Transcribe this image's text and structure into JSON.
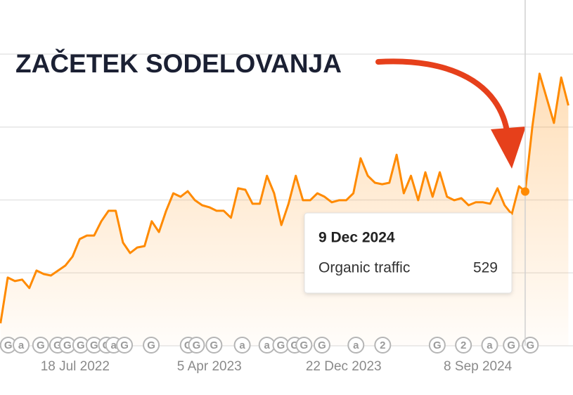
{
  "chart_data": {
    "type": "line",
    "annotation": "ZAČETEK SODELOVANJA",
    "x": [
      "2022-02-23",
      "2022-03-09",
      "2022-03-23",
      "2022-04-06",
      "2022-04-20",
      "2022-05-04",
      "2022-05-18",
      "2022-06-01",
      "2022-06-15",
      "2022-06-29",
      "2022-07-13",
      "2022-07-27",
      "2022-08-10",
      "2022-08-24",
      "2022-09-07",
      "2022-09-21",
      "2022-10-05",
      "2022-10-19",
      "2022-11-02",
      "2022-11-16",
      "2022-11-30",
      "2022-12-14",
      "2022-12-28",
      "2023-01-11",
      "2023-01-25",
      "2023-02-08",
      "2023-02-22",
      "2023-03-08",
      "2023-03-22",
      "2023-04-05",
      "2023-04-19",
      "2023-05-03",
      "2023-05-17",
      "2023-05-31",
      "2023-06-14",
      "2023-06-28",
      "2023-07-12",
      "2023-07-26",
      "2023-08-09",
      "2023-08-23",
      "2023-09-06",
      "2023-09-20",
      "2023-10-04",
      "2023-10-18",
      "2023-11-01",
      "2023-11-15",
      "2023-11-29",
      "2023-12-13",
      "2023-12-27",
      "2024-01-10",
      "2024-01-24",
      "2024-02-07",
      "2024-02-21",
      "2024-03-06",
      "2024-03-20",
      "2024-04-03",
      "2024-04-17",
      "2024-05-01",
      "2024-05-15",
      "2024-05-29",
      "2024-06-12",
      "2024-06-26",
      "2024-07-10",
      "2024-07-24",
      "2024-08-07",
      "2024-08-21",
      "2024-09-04",
      "2024-09-18",
      "2024-10-02",
      "2024-10-16",
      "2024-10-30",
      "2024-11-13",
      "2024-11-27",
      "2024-12-09",
      "2024-12-23",
      "2025-01-06",
      "2025-01-20",
      "2025-02-03",
      "2025-02-17",
      "2025-03-03"
    ],
    "series": [
      {
        "name": "Organic traffic",
        "color": "#ff8a00",
        "values": [
          77,
          234,
          222,
          227,
          198,
          258,
          246,
          241,
          258,
          275,
          306,
          366,
          378,
          378,
          427,
          463,
          463,
          354,
          318,
          337,
          342,
          427,
          390,
          463,
          523,
          511,
          530,
          499,
          482,
          475,
          463,
          463,
          439,
          540,
          535,
          487,
          487,
          583,
          523,
          414,
          487,
          583,
          499,
          499,
          523,
          511,
          492,
          499,
          499,
          523,
          643,
          583,
          559,
          554,
          559,
          655,
          523,
          583,
          499,
          595,
          511,
          595,
          511,
          499,
          506,
          482,
          492,
          492,
          487,
          540,
          482,
          451,
          547,
          529,
          752,
          933,
          848,
          764,
          920,
          824
        ]
      }
    ],
    "xlim": [
      "2022-02-22",
      "2025-03-12"
    ],
    "xticks": [
      {
        "value": "2022-07-18",
        "label": "18 Jul 2022"
      },
      {
        "value": "2023-04-05",
        "label": "5 Apr 2023"
      },
      {
        "value": "2023-12-22",
        "label": "22 Dec 2023"
      },
      {
        "value": "2024-09-08",
        "label": "8 Sep 2024"
      }
    ],
    "ylim": [
      0,
      1000
    ],
    "yticks": [
      0,
      250,
      500,
      750,
      1000
    ],
    "grid": true,
    "tooltip": {
      "date": "9 Dec 2024"
    },
    "events": [
      {
        "x": "2022-03-10",
        "label": "G"
      },
      {
        "x": "2022-04-04",
        "label": "a"
      },
      {
        "x": "2022-05-12",
        "label": "G"
      },
      {
        "x": "2022-06-14",
        "label": "G"
      },
      {
        "x": "2022-07-03",
        "label": "G"
      },
      {
        "x": "2022-07-29",
        "label": "G"
      },
      {
        "x": "2022-08-24",
        "label": "G"
      },
      {
        "x": "2022-09-17",
        "label": "G"
      },
      {
        "x": "2022-10-01",
        "label": "a"
      },
      {
        "x": "2022-10-22",
        "label": "G"
      },
      {
        "x": "2022-12-13",
        "label": "G"
      },
      {
        "x": "2023-02-23",
        "label": "G"
      },
      {
        "x": "2023-03-11",
        "label": "G"
      },
      {
        "x": "2023-04-14",
        "label": "G"
      },
      {
        "x": "2023-06-08",
        "label": "a"
      },
      {
        "x": "2023-07-26",
        "label": "a"
      },
      {
        "x": "2023-08-22",
        "label": "G"
      },
      {
        "x": "2023-09-18",
        "label": "G"
      },
      {
        "x": "2023-10-06",
        "label": "G"
      },
      {
        "x": "2023-11-10",
        "label": "G"
      },
      {
        "x": "2024-01-15",
        "label": "a"
      },
      {
        "x": "2024-03-07",
        "label": "2"
      },
      {
        "x": "2024-06-21",
        "label": "G"
      },
      {
        "x": "2024-08-11",
        "label": "2"
      },
      {
        "x": "2024-10-01",
        "label": "a"
      },
      {
        "x": "2024-11-12",
        "label": "G"
      },
      {
        "x": "2024-12-19",
        "label": "G"
      }
    ]
  }
}
